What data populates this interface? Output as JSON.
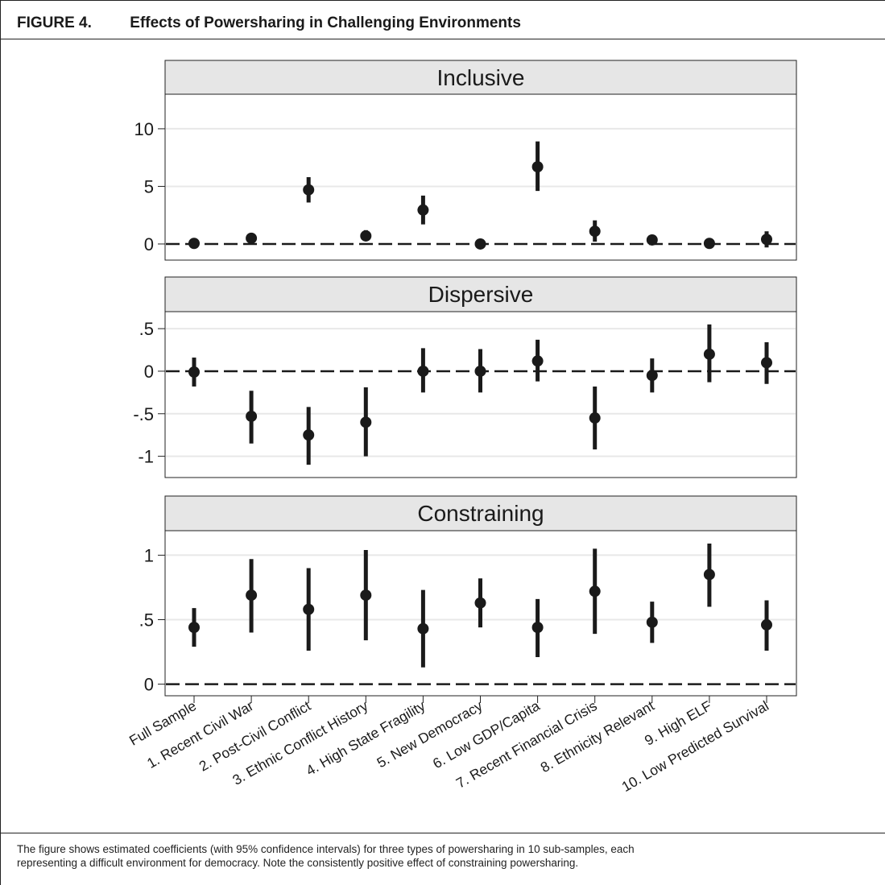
{
  "figure": {
    "label": "FIGURE 4.",
    "title": "Effects of Powersharing in Challenging Environments",
    "caption_line1": "The figure shows estimated coefficients (with 95% confidence intervals) for three types of powersharing in 10 sub-samples, each",
    "caption_line2": "representing a difficult environment for democracy. Note the consistently positive effect of constraining powersharing."
  },
  "chart_data": {
    "type": "scatter",
    "categories": [
      "Full Sample",
      "1. Recent Civil War",
      "2. Post-Civil Conflict",
      "3. Ethnic Conflict History",
      "4. High State Fragility",
      "5. New Democracy",
      "6. Low GDP/Capita",
      "7. Recent Financial Crisis",
      "8. Ethnicity Relevant",
      "9. High ELF",
      "10. Low Predicted Survival"
    ],
    "panels": [
      {
        "title": "Inclusive",
        "ylim": [
          -1.4,
          13.0
        ],
        "yticks": [
          0,
          5,
          10
        ],
        "yticklabels": [
          "0",
          "5",
          "10"
        ],
        "estimate": [
          0.05,
          0.5,
          4.7,
          0.7,
          2.95,
          0.0,
          6.7,
          1.1,
          0.35,
          0.05,
          0.4
        ],
        "ci_low": [
          -0.15,
          0.2,
          3.6,
          0.25,
          1.7,
          -0.15,
          4.6,
          0.2,
          -0.1,
          -0.15,
          -0.3
        ],
        "ci_high": [
          0.25,
          0.8,
          5.8,
          1.2,
          4.2,
          0.15,
          8.9,
          2.05,
          0.8,
          0.25,
          1.1
        ]
      },
      {
        "title": "Dispersive",
        "ylim": [
          -1.25,
          0.7
        ],
        "yticks": [
          0.5,
          0,
          -0.5,
          -1
        ],
        "yticklabels": [
          ".5",
          "0",
          "-.5",
          "-1"
        ],
        "estimate": [
          -0.01,
          -0.53,
          -0.75,
          -0.6,
          0.0,
          0.0,
          0.12,
          -0.55,
          -0.05,
          0.2,
          0.1
        ],
        "ci_low": [
          -0.18,
          -0.85,
          -1.1,
          -1.0,
          -0.25,
          -0.25,
          -0.12,
          -0.92,
          -0.25,
          -0.13,
          -0.15
        ],
        "ci_high": [
          0.16,
          -0.23,
          -0.42,
          -0.19,
          0.27,
          0.26,
          0.37,
          -0.18,
          0.15,
          0.55,
          0.34
        ]
      },
      {
        "title": "Constraining",
        "ylim": [
          -0.09,
          1.19
        ],
        "yticks": [
          1,
          0.5,
          0
        ],
        "yticklabels": [
          "1",
          ".5",
          "0"
        ],
        "estimate": [
          0.44,
          0.69,
          0.58,
          0.69,
          0.43,
          0.63,
          0.44,
          0.72,
          0.48,
          0.85,
          0.46
        ],
        "ci_low": [
          0.29,
          0.4,
          0.26,
          0.34,
          0.13,
          0.44,
          0.21,
          0.39,
          0.32,
          0.6,
          0.26
        ],
        "ci_high": [
          0.59,
          0.97,
          0.9,
          1.04,
          0.73,
          0.82,
          0.66,
          1.05,
          0.64,
          1.09,
          0.65
        ]
      }
    ],
    "reference_line": 0,
    "grid": true,
    "legend": "none"
  },
  "colors": {
    "marker": "#1a1a1a",
    "strip": "#e6e6e6",
    "grid": "#e8e8e8",
    "border": "#222222"
  }
}
